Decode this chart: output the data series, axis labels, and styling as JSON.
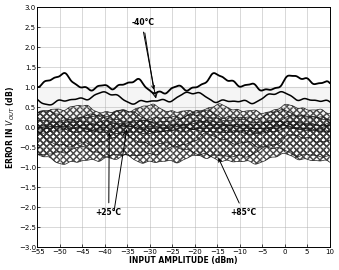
{
  "xlim": [
    -55,
    10
  ],
  "ylim": [
    -3.0,
    3.0
  ],
  "xticks": [
    -55,
    -50,
    -45,
    -40,
    -35,
    -30,
    -25,
    -20,
    -15,
    -10,
    -5,
    0,
    5,
    10
  ],
  "yticks": [
    -3.0,
    -2.5,
    -2.0,
    -1.5,
    -1.0,
    -0.5,
    0.0,
    0.5,
    1.0,
    1.5,
    2.0,
    2.5,
    3.0
  ],
  "xlabel": "INPUT AMPLITUDE (dBm)",
  "ylabel": "ERROR IN VOUT (dB)",
  "annotation_neg40": "-40°C",
  "annotation_pos25": "+25°C",
  "annotation_pos85": "+85°C",
  "gray_band_y1": 0.0,
  "gray_band_y2": 1.0,
  "background_color": "#ffffff",
  "grid_color": "#aaaaaa"
}
